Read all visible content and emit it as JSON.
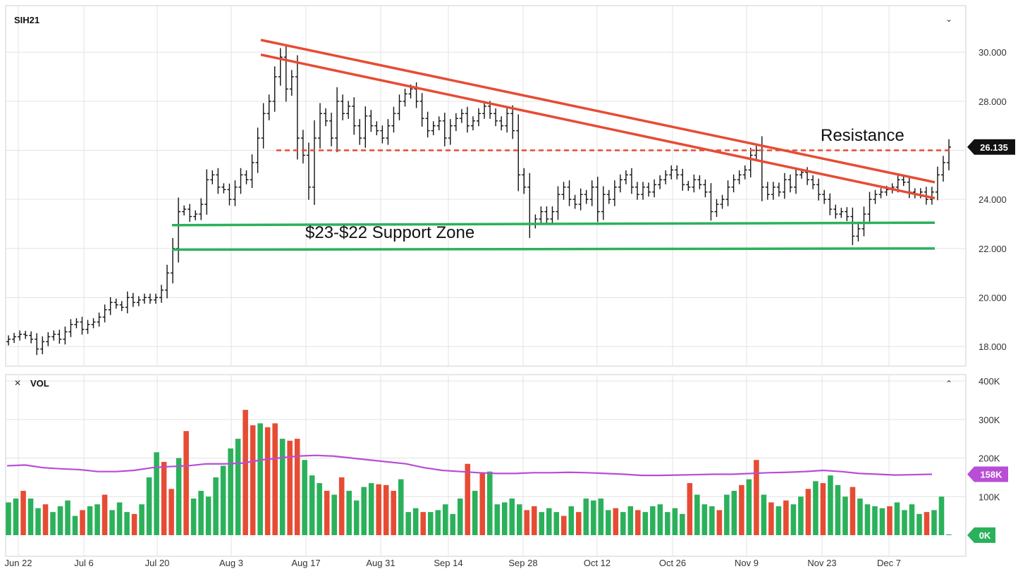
{
  "chart_data": [
    {
      "type": "ohlc",
      "symbol": "SIH21",
      "ylim": [
        17.2,
        31.9
      ],
      "yticks": [
        "18.000",
        "20.000",
        "22.000",
        "24.000",
        "26.000",
        "28.000",
        "30.000"
      ],
      "last_price": "26.135",
      "x_labels": [
        "Jun 22",
        "Jul 6",
        "Jul 20",
        "Aug 3",
        "Aug 17",
        "Aug 31",
        "Sep 14",
        "Sep 28",
        "Oct 12",
        "Oct 26",
        "Nov 9",
        "Nov 23",
        "Dec 7"
      ],
      "close_series": [
        18.3,
        18.4,
        18.5,
        18.45,
        18.3,
        17.9,
        18.2,
        18.4,
        18.5,
        18.3,
        18.6,
        18.9,
        19.0,
        18.7,
        18.9,
        19.0,
        19.2,
        19.5,
        19.8,
        19.7,
        19.6,
        20.0,
        19.8,
        19.9,
        20.0,
        19.9,
        20.0,
        20.3,
        21.0,
        22.0,
        23.5,
        23.6,
        23.3,
        23.4,
        23.8,
        24.8,
        25.0,
        24.5,
        24.4,
        24.0,
        24.5,
        25.0,
        24.8,
        25.5,
        26.5,
        27.5,
        28.0,
        29.0,
        29.8,
        28.5,
        29.0,
        26.5,
        25.8,
        24.5,
        26.5,
        27.5,
        27.2,
        26.5,
        28.0,
        27.5,
        27.8,
        27.0,
        26.5,
        27.4,
        27.0,
        26.8,
        26.5,
        27.0,
        27.5,
        28.0,
        28.3,
        28.5,
        28.0,
        27.3,
        26.8,
        27.0,
        27.2,
        26.5,
        27.0,
        27.3,
        27.5,
        27.0,
        27.2,
        27.5,
        27.8,
        27.5,
        27.2,
        27.0,
        27.5,
        26.8,
        25.0,
        24.5,
        23.0,
        23.2,
        23.5,
        23.2,
        23.5,
        24.2,
        24.5,
        24.0,
        23.8,
        24.2,
        24.0,
        24.5,
        23.5,
        24.2,
        24.0,
        24.5,
        24.8,
        25.0,
        24.5,
        24.2,
        24.5,
        24.3,
        24.6,
        24.8,
        25.0,
        25.2,
        25.0,
        24.6,
        24.5,
        24.8,
        24.6,
        24.3,
        23.5,
        23.8,
        24.0,
        24.5,
        24.8,
        25.0,
        25.2,
        25.8,
        26.0,
        24.5,
        24.2,
        24.5,
        24.3,
        24.8,
        24.5,
        25.0,
        25.1,
        24.8,
        24.6,
        24.2,
        24.0,
        23.6,
        23.4,
        23.5,
        23.3,
        22.5,
        22.8,
        23.4,
        24.0,
        24.2,
        24.3,
        24.4,
        24.5,
        24.8,
        24.7,
        24.3,
        24.2,
        24.3,
        24.0,
        24.3,
        25.0,
        25.5,
        26.135
      ],
      "vol_ylim": [
        0,
        400000
      ],
      "vol_yticks": [
        "100K",
        "200K",
        "300K",
        "400K"
      ],
      "vol_ma_label": "158K",
      "vol_last_label": "0K",
      "volume": [
        85000,
        95000,
        115000,
        95000,
        70000,
        80000,
        60000,
        75000,
        90000,
        50000,
        65000,
        75000,
        80000,
        105000,
        65000,
        85000,
        60000,
        55000,
        80000,
        150000,
        215000,
        190000,
        120000,
        200000,
        270000,
        95000,
        115000,
        100000,
        150000,
        180000,
        225000,
        250000,
        325000,
        285000,
        290000,
        280000,
        290000,
        250000,
        245000,
        250000,
        195000,
        155000,
        135000,
        115000,
        105000,
        150000,
        115000,
        90000,
        125000,
        135000,
        132000,
        130000,
        115000,
        145000,
        60000,
        70000,
        60000,
        60000,
        65000,
        80000,
        55000,
        95000,
        185000,
        115000,
        160000,
        165000,
        80000,
        85000,
        95000,
        80000,
        65000,
        75000,
        60000,
        70000,
        60000,
        50000,
        75000,
        60000,
        95000,
        90000,
        95000,
        65000,
        70000,
        60000,
        75000,
        65000,
        60000,
        75000,
        80000,
        60000,
        70000,
        55000,
        135000,
        105000,
        80000,
        75000,
        65000,
        105000,
        115000,
        130000,
        145000,
        195000,
        105000,
        85000,
        75000,
        90000,
        80000,
        100000,
        120000,
        140000,
        135000,
        155000,
        130000,
        100000,
        125000,
        95000,
        80000,
        75000,
        70000,
        75000,
        85000,
        65000,
        80000,
        55000,
        60000,
        65000,
        100000,
        2000
      ],
      "vol_colors_red_idx": [
        2,
        5,
        10,
        13,
        17,
        21,
        22,
        24,
        32,
        33,
        35,
        36,
        38,
        39,
        43,
        45,
        50,
        51,
        52,
        56,
        62,
        64,
        70,
        71,
        75,
        77,
        82,
        85,
        92,
        96,
        99,
        101,
        103,
        105,
        108,
        110,
        114,
        119,
        124
      ],
      "vol_ma": [
        180000,
        182000,
        175000,
        172000,
        170000,
        165000,
        165000,
        168000,
        175000,
        178000,
        180000,
        185000,
        185000,
        187000,
        195000,
        200000,
        205000,
        207000,
        205000,
        200000,
        195000,
        190000,
        185000,
        175000,
        168000,
        165000,
        162000,
        160000,
        160000,
        162000,
        162000,
        163000,
        162000,
        160000,
        158000,
        155000,
        155000,
        156000,
        157000,
        158000,
        158000,
        160000,
        162000,
        163000,
        165000,
        168000,
        165000,
        160000,
        158000,
        156000,
        157000,
        158000
      ],
      "annotations": [
        "Resistance",
        "$23-$22 Support Zone"
      ]
    }
  ],
  "header": {
    "symbol": "SIH21",
    "vol_label": "VOL"
  },
  "colors": {
    "up": "#2bb15b",
    "down": "#e64c34",
    "trend": "#e64c34",
    "support": "#2bb15b",
    "ma": "#b84dd6"
  }
}
